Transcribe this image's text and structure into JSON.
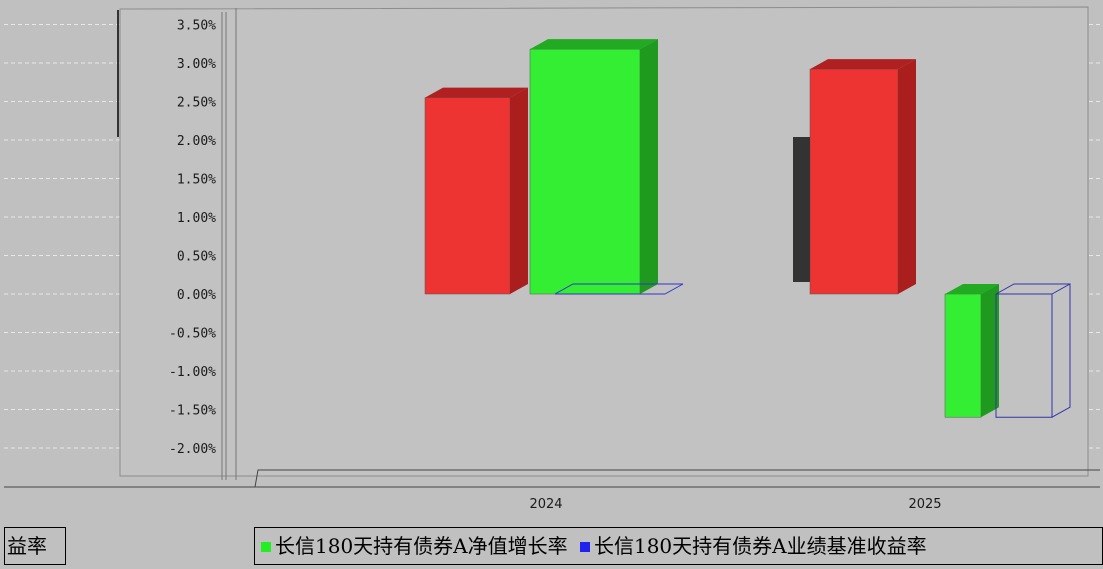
{
  "chart_data": {
    "type": "bar",
    "categories": [
      "2024",
      "2025"
    ],
    "series": [
      {
        "name": "长信180天持有债券A净值增长率",
        "color": "#22ee22",
        "values": [
          3.18,
          -1.6
        ]
      },
      {
        "name": "长信180天持有债券A业绩基准收益率",
        "color": "#2222ee",
        "values": [
          0.0,
          -1.6
        ]
      },
      {
        "name": "",
        "color": "#ee2222",
        "values": [
          2.55,
          2.92
        ]
      }
    ],
    "y_ticks": [
      "-2.00%",
      "-1.50%",
      "-1.00%",
      "-0.50%",
      "0.00%",
      "0.50%",
      "1.00%",
      "1.50%",
      "2.00%",
      "2.50%",
      "3.00%",
      "3.50%"
    ],
    "ylim": [
      -2.0,
      3.5
    ],
    "grid": true,
    "legend_position": "bottom"
  },
  "legend": {
    "left_fragment": "益率",
    "series1_label": "长信180天持有债券A净值增长率",
    "series2_label": "长信180天持有债券A业绩基准收益率"
  }
}
